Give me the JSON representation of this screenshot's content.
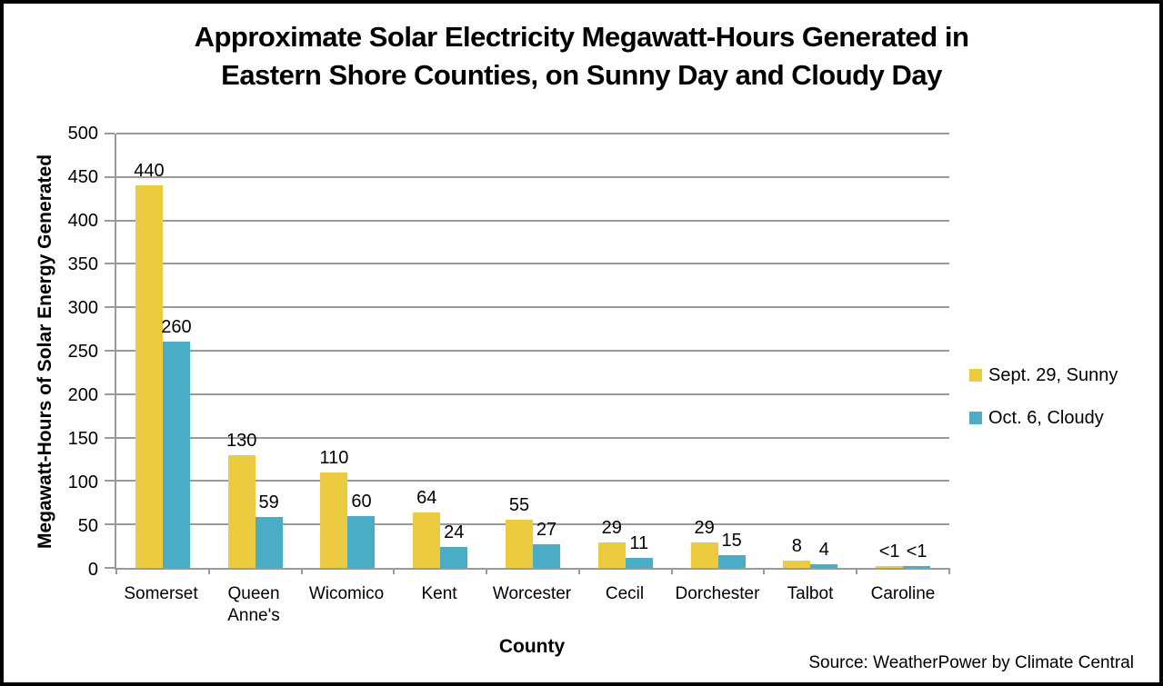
{
  "title": {
    "line1": "Approximate Solar Electricity Megawatt-Hours Generated in",
    "line2": "Eastern Shore Counties, on Sunny Day and Cloudy Day"
  },
  "chart_data": {
    "type": "bar",
    "title": "Approximate Solar Electricity Megawatt-Hours Generated in Eastern Shore Counties, on Sunny Day and Cloudy Day",
    "categories": [
      "Somerset",
      "Queen Anne's",
      "Wicomico",
      "Kent",
      "Worcester",
      "Cecil",
      "Dorchester",
      "Talbot",
      "Caroline"
    ],
    "series": [
      {
        "name": "Sept. 29, Sunny",
        "color": "#ECCB41",
        "values": [
          440,
          130,
          110,
          64,
          55,
          29,
          29,
          8,
          0.5
        ],
        "labels": [
          "440",
          "130",
          "110",
          "64",
          "55",
          "29",
          "29",
          "8",
          "<1"
        ]
      },
      {
        "name": "Oct. 6, Cloudy",
        "color": "#4BACC6",
        "values": [
          260,
          59,
          60,
          24,
          27,
          11,
          15,
          4,
          0.5
        ],
        "labels": [
          "260",
          "59",
          "60",
          "24",
          "27",
          "11",
          "15",
          "4",
          "<1"
        ]
      }
    ],
    "xlabel": "County",
    "ylabel": "Megawatt-Hours of Solar Energy Generated",
    "ylim": [
      0,
      500
    ],
    "ytick_step": 50,
    "grid": true,
    "legend_position": "right"
  },
  "source_note": "Source: WeatherPower by Climate Central",
  "colors": {
    "grid": "#9A9A9A",
    "frame_border": "#000000",
    "background": "#FFFFFF",
    "text": "#000000"
  }
}
